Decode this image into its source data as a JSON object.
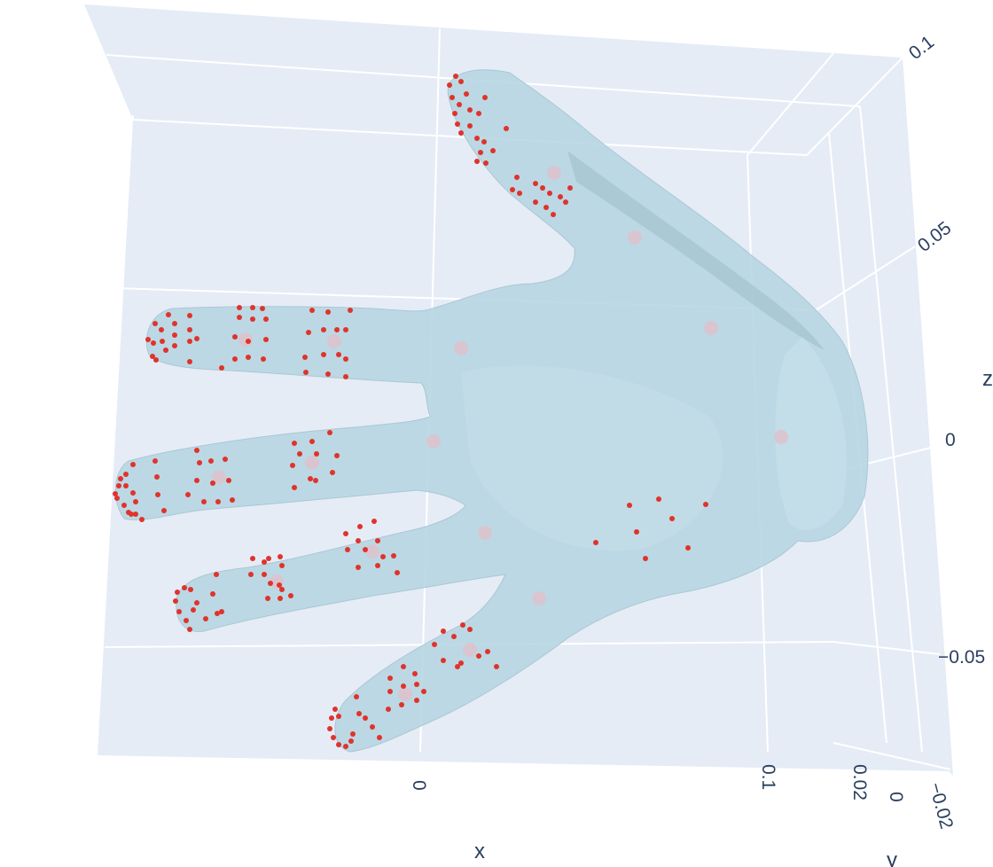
{
  "chart_data": {
    "type": "scatter3d",
    "description_free": true,
    "axes": {
      "x": {
        "title": "x",
        "ticks": [
          "0",
          "0.1"
        ]
      },
      "y": {
        "title": "y",
        "ticks": [
          "0.02",
          "0",
          "−0.02"
        ]
      },
      "z": {
        "title": "z",
        "ticks": [
          "0.1",
          "0.05",
          "0",
          "−0.05"
        ]
      }
    },
    "grid": true,
    "colors": {
      "scene_bg": "#e5ecf6",
      "grid": "#ffffff",
      "mesh": "#b7d6e2",
      "mesh_shadow": "#9fbfcc",
      "markers": "#e0332b",
      "joints": "#dcc3cd",
      "text": "#2a3f5f"
    },
    "joints": [
      [
        625,
        195
      ],
      [
        716,
        268
      ],
      [
        802,
        370
      ],
      [
        881,
        493
      ],
      [
        520,
        393
      ],
      [
        489,
        498
      ],
      [
        547,
        601
      ],
      [
        608,
        675
      ],
      [
        377,
        385
      ],
      [
        277,
        383
      ],
      [
        352,
        522
      ],
      [
        247,
        538
      ],
      [
        420,
        622
      ],
      [
        312,
        656
      ],
      [
        530,
        733
      ],
      [
        457,
        783
      ]
    ],
    "markers": [
      [
        514,
        86
      ],
      [
        507,
        96
      ],
      [
        520,
        92
      ],
      [
        526,
        106
      ],
      [
        510,
        110
      ],
      [
        518,
        118
      ],
      [
        530,
        124
      ],
      [
        540,
        128
      ],
      [
        547,
        110
      ],
      [
        513,
        128
      ],
      [
        516,
        140
      ],
      [
        520,
        150
      ],
      [
        530,
        142
      ],
      [
        538,
        156
      ],
      [
        546,
        160
      ],
      [
        556,
        170
      ],
      [
        542,
        172
      ],
      [
        538,
        182
      ],
      [
        548,
        184
      ],
      [
        571,
        145
      ],
      [
        583,
        200
      ],
      [
        578,
        214
      ],
      [
        586,
        218
      ],
      [
        604,
        207
      ],
      [
        612,
        212
      ],
      [
        620,
        218
      ],
      [
        632,
        222
      ],
      [
        643,
        212
      ],
      [
        604,
        228
      ],
      [
        616,
        234
      ],
      [
        624,
        242
      ],
      [
        638,
        228
      ],
      [
        190,
        355
      ],
      [
        175,
        365
      ],
      [
        182,
        372
      ],
      [
        167,
        383
      ],
      [
        173,
        387
      ],
      [
        183,
        385
      ],
      [
        172,
        402
      ],
      [
        176,
        406
      ],
      [
        187,
        395
      ],
      [
        197,
        365
      ],
      [
        197,
        378
      ],
      [
        197,
        390
      ],
      [
        214,
        356
      ],
      [
        214,
        372
      ],
      [
        214,
        385
      ],
      [
        214,
        408
      ],
      [
        250,
        415
      ],
      [
        222,
        382
      ],
      [
        270,
        347
      ],
      [
        285,
        347
      ],
      [
        296,
        348
      ],
      [
        270,
        358
      ],
      [
        285,
        360
      ],
      [
        300,
        360
      ],
      [
        265,
        380
      ],
      [
        280,
        385
      ],
      [
        300,
        383
      ],
      [
        265,
        405
      ],
      [
        280,
        403
      ],
      [
        297,
        405
      ],
      [
        352,
        350
      ],
      [
        370,
        352
      ],
      [
        395,
        350
      ],
      [
        348,
        375
      ],
      [
        365,
        372
      ],
      [
        380,
        372
      ],
      [
        390,
        372
      ],
      [
        344,
        403
      ],
      [
        365,
        400
      ],
      [
        382,
        400
      ],
      [
        390,
        405
      ],
      [
        345,
        420
      ],
      [
        370,
        422
      ],
      [
        390,
        425
      ],
      [
        150,
        524
      ],
      [
        142,
        535
      ],
      [
        136,
        540
      ],
      [
        134,
        548
      ],
      [
        130,
        557
      ],
      [
        132,
        562
      ],
      [
        140,
        570
      ],
      [
        145,
        578
      ],
      [
        153,
        580
      ],
      [
        160,
        586
      ],
      [
        142,
        548
      ],
      [
        150,
        556
      ],
      [
        175,
        520
      ],
      [
        177,
        538
      ],
      [
        178,
        558
      ],
      [
        185,
        576
      ],
      [
        153,
        566
      ],
      [
        148,
        580
      ],
      [
        222,
        508
      ],
      [
        225,
        522
      ],
      [
        238,
        520
      ],
      [
        254,
        518
      ],
      [
        222,
        542
      ],
      [
        240,
        545
      ],
      [
        258,
        542
      ],
      [
        230,
        566
      ],
      [
        246,
        566
      ],
      [
        262,
        564
      ],
      [
        212,
        558
      ],
      [
        332,
        500
      ],
      [
        352,
        498
      ],
      [
        372,
        488
      ],
      [
        338,
        512
      ],
      [
        357,
        512
      ],
      [
        380,
        514
      ],
      [
        330,
        525
      ],
      [
        332,
        550
      ],
      [
        350,
        540
      ],
      [
        356,
        542
      ],
      [
        375,
        533
      ],
      [
        208,
        663
      ],
      [
        200,
        668
      ],
      [
        198,
        678
      ],
      [
        202,
        690
      ],
      [
        210,
        700
      ],
      [
        214,
        710
      ],
      [
        218,
        688
      ],
      [
        215,
        665
      ],
      [
        222,
        680
      ],
      [
        232,
        698
      ],
      [
        244,
        648
      ],
      [
        240,
        670
      ],
      [
        245,
        692
      ],
      [
        250,
        690
      ],
      [
        285,
        630
      ],
      [
        298,
        634
      ],
      [
        303,
        630
      ],
      [
        316,
        628
      ],
      [
        318,
        638
      ],
      [
        298,
        648
      ],
      [
        305,
        658
      ],
      [
        315,
        660
      ],
      [
        318,
        665
      ],
      [
        302,
        675
      ],
      [
        316,
        675
      ],
      [
        328,
        672
      ],
      [
        283,
        648
      ],
      [
        390,
        602
      ],
      [
        406,
        594
      ],
      [
        422,
        588
      ],
      [
        404,
        610
      ],
      [
        426,
        610
      ],
      [
        392,
        620
      ],
      [
        412,
        620
      ],
      [
        432,
        628
      ],
      [
        444,
        627
      ],
      [
        404,
        640
      ],
      [
        426,
        638
      ],
      [
        448,
        646
      ],
      [
        378,
        800
      ],
      [
        374,
        810
      ],
      [
        382,
        808
      ],
      [
        372,
        822
      ],
      [
        376,
        832
      ],
      [
        382,
        840
      ],
      [
        390,
        842
      ],
      [
        396,
        836
      ],
      [
        398,
        828
      ],
      [
        405,
        805
      ],
      [
        412,
        810
      ],
      [
        420,
        820
      ],
      [
        428,
        832
      ],
      [
        402,
        786
      ],
      [
        440,
        765
      ],
      [
        455,
        752
      ],
      [
        468,
        760
      ],
      [
        440,
        780
      ],
      [
        455,
        774
      ],
      [
        470,
        772
      ],
      [
        438,
        800
      ],
      [
        453,
        795
      ],
      [
        470,
        790
      ],
      [
        478,
        780
      ],
      [
        490,
        727
      ],
      [
        500,
        712
      ],
      [
        512,
        718
      ],
      [
        522,
        705
      ],
      [
        530,
        710
      ],
      [
        500,
        745
      ],
      [
        520,
        748
      ],
      [
        540,
        740
      ],
      [
        550,
        735
      ],
      [
        560,
        752
      ],
      [
        516,
        752
      ],
      [
        710,
        570
      ],
      [
        743,
        563
      ],
      [
        758,
        585
      ],
      [
        796,
        569
      ],
      [
        718,
        600
      ],
      [
        672,
        612
      ],
      [
        728,
        630
      ],
      [
        776,
        618
      ]
    ]
  }
}
